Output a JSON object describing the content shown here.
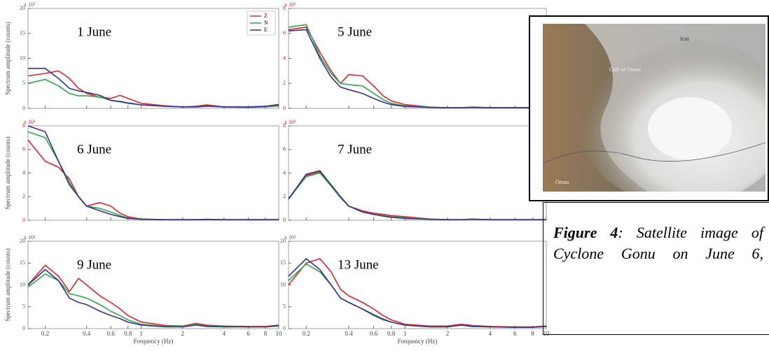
{
  "chart_data": [
    {
      "type": "line",
      "title": "1 June",
      "y_multiplier": "x 10²",
      "ylabel": "Spectrum amplitude (counts)",
      "log_x": true,
      "x": [
        0.15,
        0.2,
        0.25,
        0.3,
        0.35,
        0.4,
        0.5,
        0.6,
        0.7,
        0.8,
        1,
        1.5,
        2,
        2.5,
        3,
        4,
        6,
        8,
        10
      ],
      "xlim": [
        0.15,
        10
      ],
      "xticks": [
        0.2,
        0.4,
        0.6,
        0.8,
        1,
        2,
        4,
        6,
        8,
        10
      ],
      "ylim": [
        0,
        20
      ],
      "yticks": [
        0,
        5,
        10,
        15,
        20
      ],
      "ytick_color": "#555555",
      "legend": "upper right",
      "series": [
        {
          "name": "Z",
          "color": "#d9262e",
          "values": [
            6.5,
            7,
            7.5,
            6,
            4,
            3,
            2.2,
            2,
            2.6,
            2,
            1,
            0.5,
            0.3,
            0.4,
            0.7,
            0.3,
            0.3,
            0.4,
            0.8
          ]
        },
        {
          "name": "N",
          "color": "#2aa84a",
          "values": [
            5,
            5.8,
            4.5,
            3,
            2.5,
            2.5,
            2.3,
            1.6,
            1.3,
            1,
            0.7,
            0.4,
            0.3,
            0.3,
            0.4,
            0.3,
            0.2,
            0.3,
            0.5
          ]
        },
        {
          "name": "E",
          "color": "#3b2f8f",
          "values": [
            8,
            8,
            6,
            4,
            3.5,
            3.2,
            2.6,
            1.6,
            1.4,
            1.1,
            0.7,
            0.4,
            0.3,
            0.3,
            0.5,
            0.3,
            0.3,
            0.4,
            0.7
          ]
        }
      ]
    },
    {
      "type": "line",
      "title": "5 June",
      "y_multiplier": "x 10³",
      "log_x": true,
      "x": [
        0.15,
        0.2,
        0.25,
        0.3,
        0.35,
        0.4,
        0.5,
        0.6,
        0.7,
        0.8,
        1,
        1.5,
        2,
        2.5,
        3,
        4,
        6,
        8,
        10
      ],
      "xlim": [
        0.15,
        10
      ],
      "xticks": [
        0.2,
        0.4,
        0.6,
        0.8,
        1,
        2,
        4,
        6,
        8,
        10
      ],
      "ylim": [
        0,
        8
      ],
      "yticks": [
        0,
        2,
        4,
        6,
        8
      ],
      "ytick_color": "#cc2222",
      "series": [
        {
          "color": "#d9262e",
          "values": [
            6.3,
            6.5,
            4.5,
            3,
            2,
            2.7,
            2.6,
            1.8,
            1,
            0.6,
            0.3,
            0.1,
            0.05,
            0.05,
            0.1,
            0.05,
            0.05,
            0.05,
            0.05
          ]
        },
        {
          "color": "#2aa84a",
          "values": [
            6.5,
            6.7,
            4.2,
            2.8,
            2,
            1.9,
            1.8,
            1.2,
            0.7,
            0.4,
            0.2,
            0.1,
            0.05,
            0.05,
            0.08,
            0.05,
            0.05,
            0.05,
            0.05
          ]
        },
        {
          "color": "#3b2f8f",
          "values": [
            6.2,
            6.3,
            4,
            2.5,
            1.7,
            1.5,
            1.2,
            0.8,
            0.5,
            0.3,
            0.15,
            0.08,
            0.05,
            0.05,
            0.08,
            0.05,
            0.05,
            0.05,
            0.05
          ]
        }
      ]
    },
    {
      "type": "line",
      "title": "6 June",
      "y_multiplier": "x 10³",
      "ylabel": "Spectrum amplitude (counts)",
      "log_x": true,
      "x": [
        0.15,
        0.2,
        0.25,
        0.3,
        0.35,
        0.4,
        0.5,
        0.6,
        0.7,
        0.8,
        1,
        1.5,
        2,
        2.5,
        3,
        4,
        6,
        8,
        10
      ],
      "xlim": [
        0.15,
        10
      ],
      "xticks": [
        0.2,
        0.4,
        0.6,
        0.8,
        1,
        2,
        4,
        6,
        8,
        10
      ],
      "ylim": [
        0,
        8
      ],
      "yticks": [
        0,
        2,
        4,
        6,
        8
      ],
      "ytick_color": "#cc2222",
      "series": [
        {
          "color": "#d9262e",
          "values": [
            6.8,
            5,
            4.5,
            3.5,
            2,
            1.2,
            1.5,
            1.2,
            0.6,
            0.3,
            0.1,
            0.05,
            0.05,
            0.05,
            0.08,
            0.05,
            0.05,
            0.05,
            0.05
          ]
        },
        {
          "color": "#2aa84a",
          "values": [
            7.5,
            7,
            5,
            3.2,
            2,
            1.2,
            1,
            0.7,
            0.4,
            0.2,
            0.1,
            0.05,
            0.05,
            0.05,
            0.06,
            0.05,
            0.05,
            0.05,
            0.05
          ]
        },
        {
          "color": "#3b2f8f",
          "values": [
            8,
            7.5,
            5,
            3,
            2,
            1.2,
            0.8,
            0.5,
            0.3,
            0.15,
            0.08,
            0.05,
            0.05,
            0.05,
            0.06,
            0.05,
            0.05,
            0.05,
            0.05
          ]
        }
      ]
    },
    {
      "type": "line",
      "title": "7 June",
      "y_multiplier": "x 10³",
      "log_x": true,
      "x": [
        0.15,
        0.2,
        0.25,
        0.3,
        0.35,
        0.4,
        0.5,
        0.6,
        0.7,
        0.8,
        1,
        1.5,
        2,
        2.5,
        3,
        4,
        6,
        8,
        10
      ],
      "xlim": [
        0.15,
        10
      ],
      "xticks": [
        0.2,
        0.4,
        0.6,
        0.8,
        1,
        2,
        4,
        6,
        8,
        10
      ],
      "ylim": [
        0,
        8
      ],
      "yticks": [
        0,
        2,
        4,
        6,
        8
      ],
      "ytick_color": "#cc2222",
      "series": [
        {
          "color": "#d9262e",
          "values": [
            1.8,
            3.8,
            4.1,
            3,
            2,
            1.2,
            0.8,
            0.6,
            0.5,
            0.4,
            0.3,
            0.1,
            0.05,
            0.05,
            0.1,
            0.05,
            0.05,
            0.05,
            0.05
          ]
        },
        {
          "color": "#2aa84a",
          "values": [
            1.8,
            3.7,
            4,
            2.9,
            1.9,
            1.2,
            0.7,
            0.5,
            0.4,
            0.3,
            0.2,
            0.08,
            0.05,
            0.05,
            0.08,
            0.05,
            0.05,
            0.05,
            0.05
          ]
        },
        {
          "color": "#3b2f8f",
          "values": [
            1.8,
            3.9,
            4.2,
            3,
            2,
            1.2,
            0.7,
            0.5,
            0.35,
            0.25,
            0.15,
            0.08,
            0.05,
            0.05,
            0.08,
            0.05,
            0.05,
            0.05,
            0.05
          ]
        }
      ]
    },
    {
      "type": "line",
      "title": "9 June",
      "y_multiplier": "x 10²",
      "ylabel": "Spectrum amplitude (counts)",
      "xlabel": "Frequency (Hz)",
      "log_x": true,
      "x": [
        0.15,
        0.2,
        0.25,
        0.3,
        0.35,
        0.4,
        0.5,
        0.6,
        0.7,
        0.8,
        1,
        1.5,
        2,
        2.5,
        3,
        4,
        6,
        8,
        10
      ],
      "xlim": [
        0.15,
        10
      ],
      "xticks": [
        0.2,
        0.4,
        0.6,
        0.8,
        1,
        2,
        4,
        6,
        8,
        10
      ],
      "ylim": [
        0,
        20
      ],
      "yticks": [
        0,
        5,
        10,
        15,
        20
      ],
      "ytick_color": "#555555",
      "series": [
        {
          "color": "#d9262e",
          "values": [
            10,
            14.5,
            12,
            8.5,
            11.5,
            10,
            7.5,
            6,
            4.5,
            3,
            1.5,
            0.7,
            0.6,
            1.2,
            0.8,
            0.6,
            0.5,
            0.5,
            0.8
          ]
        },
        {
          "color": "#2aa84a",
          "values": [
            9.5,
            12.5,
            11,
            8,
            7.5,
            7,
            5.5,
            4,
            3,
            2,
            1,
            0.5,
            0.5,
            1,
            0.6,
            0.5,
            0.4,
            0.4,
            0.6
          ]
        },
        {
          "color": "#3b2f8f",
          "values": [
            10,
            13.5,
            11,
            7,
            6,
            5.5,
            4,
            3,
            2.3,
            1.5,
            0.8,
            0.4,
            0.4,
            0.8,
            0.5,
            0.4,
            0.4,
            0.4,
            0.7
          ]
        }
      ]
    },
    {
      "type": "line",
      "title": "13 June",
      "y_multiplier": "x 10²",
      "xlabel": "Frequency (Hz)",
      "log_x": true,
      "x": [
        0.15,
        0.2,
        0.25,
        0.3,
        0.35,
        0.4,
        0.5,
        0.6,
        0.7,
        0.8,
        1,
        1.5,
        2,
        2.5,
        3,
        4,
        6,
        8,
        10
      ],
      "xlim": [
        0.15,
        10
      ],
      "xticks": [
        0.2,
        0.4,
        0.6,
        0.8,
        1,
        2,
        4,
        6,
        8,
        10
      ],
      "ylim": [
        0,
        20
      ],
      "yticks": [
        0,
        5,
        10,
        15,
        20
      ],
      "ytick_color": "#555555",
      "series": [
        {
          "color": "#d9262e",
          "values": [
            10,
            15,
            16,
            13,
            9,
            7.5,
            6,
            4.5,
            3,
            2,
            1,
            0.6,
            0.6,
            1,
            0.7,
            0.5,
            0.4,
            0.4,
            0.6
          ]
        },
        {
          "color": "#2aa84a",
          "values": [
            11,
            14.8,
            13,
            10,
            7,
            6,
            4.5,
            3,
            2,
            1.5,
            0.8,
            0.4,
            0.4,
            0.8,
            0.5,
            0.4,
            0.3,
            0.3,
            0.5
          ]
        },
        {
          "color": "#3b2f8f",
          "values": [
            12,
            16,
            13.5,
            10,
            7,
            6,
            4.5,
            3.2,
            2.2,
            1.5,
            0.8,
            0.4,
            0.4,
            0.8,
            0.5,
            0.4,
            0.3,
            0.3,
            0.5
          ]
        }
      ]
    }
  ],
  "image": {
    "labels": [
      "Iran",
      "Gulf of Oman",
      "Oman"
    ]
  },
  "caption": {
    "label": "Figure 4",
    "text": ": Satellite image of Cyclone Gonu on June 6,"
  }
}
